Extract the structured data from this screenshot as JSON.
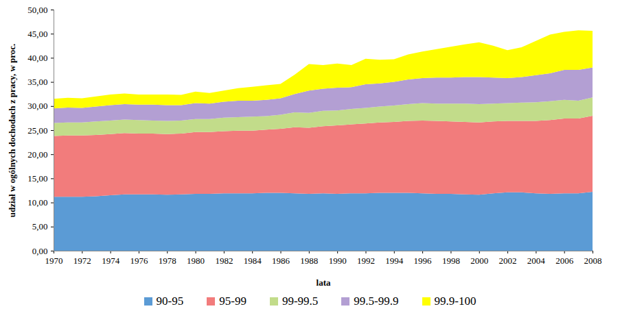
{
  "chart_data": {
    "type": "area",
    "stacked": true,
    "grid": false,
    "legend": "bottom",
    "x_label": "lata",
    "y_label": "udział w ogólnych dochodach z pracy, w proc.",
    "x": [
      1970,
      1971,
      1972,
      1973,
      1974,
      1975,
      1976,
      1977,
      1978,
      1979,
      1980,
      1981,
      1982,
      1983,
      1984,
      1985,
      1986,
      1987,
      1988,
      1989,
      1990,
      1991,
      1992,
      1993,
      1994,
      1995,
      1996,
      1997,
      1998,
      1999,
      2000,
      2001,
      2002,
      2003,
      2004,
      2005,
      2006,
      2007,
      2008
    ],
    "xlim": [
      1970,
      2008
    ],
    "xticks": [
      1970,
      1972,
      1974,
      1976,
      1978,
      1980,
      1982,
      1984,
      1986,
      1988,
      1990,
      1992,
      1994,
      1996,
      1998,
      2000,
      2002,
      2004,
      2006,
      2008
    ],
    "ylim": [
      0,
      50
    ],
    "yticks": [
      {
        "value": 0,
        "label": "0,00"
      },
      {
        "value": 5,
        "label": "5,00"
      },
      {
        "value": 10,
        "label": "10,00"
      },
      {
        "value": 15,
        "label": "15,00"
      },
      {
        "value": 20,
        "label": "20,00"
      },
      {
        "value": 25,
        "label": "25,00"
      },
      {
        "value": 30,
        "label": "30,00"
      },
      {
        "value": 35,
        "label": "35,00"
      },
      {
        "value": 40,
        "label": "40,00"
      },
      {
        "value": 45,
        "label": "45,00"
      },
      {
        "value": 50,
        "label": "50,00"
      }
    ],
    "series": [
      {
        "name": "90-95",
        "color": "#5b9bd5",
        "values": [
          11.2,
          11.2,
          11.2,
          11.3,
          11.5,
          11.7,
          11.7,
          11.7,
          11.6,
          11.7,
          11.8,
          11.8,
          11.9,
          11.9,
          11.9,
          12.0,
          12.0,
          11.9,
          11.8,
          11.9,
          11.8,
          11.9,
          11.9,
          12.0,
          12.0,
          12.0,
          11.9,
          11.8,
          11.8,
          11.7,
          11.6,
          11.9,
          12.1,
          12.1,
          11.9,
          11.8,
          11.9,
          11.9,
          12.2
        ]
      },
      {
        "name": "95-99",
        "color": "#f27c7c",
        "values": [
          12.6,
          12.7,
          12.7,
          12.7,
          12.7,
          12.7,
          12.6,
          12.6,
          12.6,
          12.6,
          12.8,
          12.8,
          12.9,
          13.0,
          13.0,
          13.1,
          13.3,
          13.7,
          13.7,
          13.9,
          14.2,
          14.3,
          14.5,
          14.6,
          14.7,
          14.9,
          15.1,
          15.1,
          15.0,
          15.0,
          15.0,
          14.9,
          14.8,
          14.8,
          15.0,
          15.3,
          15.5,
          15.5,
          15.8
        ]
      },
      {
        "name": "99-99.5",
        "color": "#c2dc8a",
        "values": [
          2.7,
          2.7,
          2.7,
          2.8,
          2.8,
          2.8,
          2.8,
          2.7,
          2.7,
          2.7,
          2.7,
          2.7,
          2.8,
          2.8,
          2.9,
          2.8,
          2.9,
          3.1,
          3.1,
          3.2,
          3.1,
          3.2,
          3.2,
          3.3,
          3.4,
          3.5,
          3.6,
          3.6,
          3.7,
          3.8,
          3.8,
          3.7,
          3.7,
          3.8,
          3.9,
          3.9,
          3.9,
          3.7,
          3.8
        ]
      },
      {
        "name": "99.5-99.9",
        "color": "#b39fd3",
        "values": [
          3.0,
          3.1,
          3.0,
          3.1,
          3.2,
          3.2,
          3.2,
          3.3,
          3.3,
          3.2,
          3.3,
          3.2,
          3.3,
          3.4,
          3.3,
          3.4,
          3.4,
          3.8,
          4.6,
          4.6,
          4.7,
          4.5,
          4.9,
          4.8,
          4.9,
          5.1,
          5.2,
          5.4,
          5.4,
          5.5,
          5.6,
          5.4,
          5.2,
          5.3,
          5.6,
          5.8,
          6.2,
          6.4,
          6.2
        ]
      },
      {
        "name": "99.9-100",
        "color": "#ffff00",
        "values": [
          2.0,
          2.0,
          2.0,
          2.1,
          2.2,
          2.2,
          2.1,
          2.1,
          2.2,
          2.1,
          2.4,
          2.2,
          2.3,
          2.6,
          2.9,
          3.0,
          3.0,
          4.0,
          5.5,
          4.9,
          5.0,
          4.6,
          5.3,
          4.9,
          4.7,
          5.2,
          5.5,
          5.9,
          6.4,
          6.8,
          7.2,
          6.6,
          5.8,
          6.2,
          7.1,
          8.0,
          7.9,
          8.2,
          7.6
        ]
      }
    ]
  }
}
